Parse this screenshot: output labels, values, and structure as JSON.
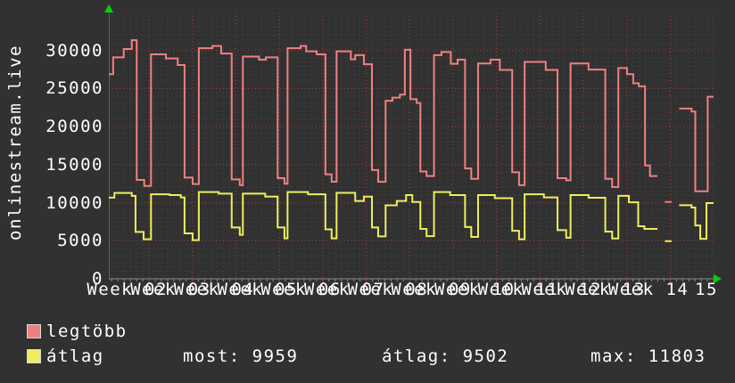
{
  "vertical_title": "onlinestream.live",
  "legend": {
    "items": [
      {
        "label": "legtöbb",
        "color": "#f08080"
      },
      {
        "label": "átlag",
        "color": "#edee5d"
      }
    ]
  },
  "stats_row": {
    "most": "most: 9959",
    "atlag": "átlag: 9502",
    "max": "max: 11803"
  },
  "chart_data": {
    "type": "line",
    "title": "onlinestream.live",
    "ylabel": "",
    "xlabel": "",
    "ylim": [
      0,
      35000
    ],
    "y_tick_values": [
      0,
      5000,
      10000,
      15000,
      20000,
      25000,
      30000
    ],
    "x_tick_labels": [
      "Week 02",
      "Week 03",
      "Week 04",
      "Week 05",
      "Week 06",
      "Week 07",
      "Week 08",
      "Week 09",
      "Week 10",
      "Week 11",
      "Week 12",
      "Week 13",
      "Week 14",
      "15"
    ],
    "x_unit": "days from chart start",
    "x_range_days": 97.45,
    "week_gridline_days": [
      6.47,
      13.47,
      20.47,
      27.47,
      34.47,
      41.47,
      48.47,
      55.47,
      62.47,
      69.47,
      76.47,
      83.47,
      90.47,
      97.45
    ],
    "grid": {
      "minor_y_step": 1000,
      "major_y_step": 5000,
      "minor_x_step_days": 1,
      "major_grid_color": "#a04040",
      "minor_grid_color": "#474747"
    },
    "legend_labels": [
      "legtöbb",
      "átlag"
    ],
    "stats": {
      "most": 9959,
      "atlag": 9502,
      "max": 11803
    },
    "series": [
      {
        "name": "legtöbb",
        "color": "#f08080",
        "runs": [
          [
            [
              0,
              0.7,
              26900
            ],
            [
              0.7,
              2.4,
              29100
            ],
            [
              2.4,
              3.7,
              30200
            ],
            [
              3.7,
              4.5,
              31350
            ],
            [
              4.5,
              5.7,
              13000
            ],
            [
              5.7,
              6.8,
              12200
            ],
            [
              6.8,
              9.2,
              29500
            ],
            [
              9.2,
              11.1,
              28950
            ],
            [
              11.1,
              12.2,
              28100
            ],
            [
              12.2,
              13.5,
              13300
            ],
            [
              13.5,
              14.5,
              12450
            ],
            [
              14.5,
              16.7,
              30300
            ],
            [
              16.7,
              18.1,
              30600
            ],
            [
              18.1,
              19.8,
              29600
            ],
            [
              19.8,
              21.1,
              13070
            ],
            [
              21.1,
              21.6,
              12300
            ],
            [
              21.6,
              24.2,
              29200
            ],
            [
              24.2,
              25.3,
              28800
            ],
            [
              25.3,
              27.2,
              29100
            ],
            [
              27.2,
              28.3,
              13230
            ],
            [
              28.3,
              28.8,
              12500
            ],
            [
              28.8,
              30.9,
              30300
            ],
            [
              30.9,
              31.8,
              30600
            ],
            [
              31.8,
              33.5,
              29900
            ],
            [
              33.5,
              34.9,
              29500
            ],
            [
              34.9,
              35.9,
              13720
            ],
            [
              35.9,
              36.7,
              12760
            ],
            [
              36.7,
              39.0,
              29900
            ],
            [
              39.0,
              39.7,
              28840
            ],
            [
              39.7,
              41.1,
              29400
            ],
            [
              41.1,
              42.4,
              28200
            ],
            [
              42.4,
              43.4,
              14300
            ],
            [
              43.4,
              44.6,
              12750
            ],
            [
              44.6,
              45.7,
              23400
            ],
            [
              45.7,
              46.9,
              23800
            ],
            [
              46.9,
              47.7,
              24200
            ],
            [
              47.7,
              48.6,
              30100
            ],
            [
              48.6,
              49.6,
              23600
            ],
            [
              49.6,
              50.2,
              23100
            ],
            [
              50.2,
              51.2,
              14100
            ],
            [
              51.2,
              52.4,
              13500
            ],
            [
              52.4,
              53.6,
              29400
            ],
            [
              53.6,
              55.1,
              29800
            ],
            [
              55.1,
              56.2,
              28260
            ],
            [
              56.2,
              57.4,
              28800
            ],
            [
              57.4,
              58.4,
              14500
            ],
            [
              58.4,
              59.5,
              13140
            ],
            [
              59.5,
              61.5,
              28300
            ],
            [
              61.5,
              63.0,
              28800
            ],
            [
              63.0,
              65.0,
              27450
            ],
            [
              65.0,
              66.1,
              14000
            ],
            [
              66.1,
              67.0,
              12300
            ],
            [
              67.0,
              70.4,
              28500
            ],
            [
              70.4,
              72.3,
              27450
            ],
            [
              72.3,
              73.7,
              13230
            ],
            [
              73.7,
              74.4,
              12950
            ],
            [
              74.4,
              77.3,
              28300
            ],
            [
              77.3,
              80.0,
              27500
            ],
            [
              80.0,
              81.1,
              13140
            ],
            [
              81.1,
              82.1,
              12060
            ],
            [
              82.1,
              83.5,
              27700
            ],
            [
              83.5,
              84.5,
              26900
            ],
            [
              84.5,
              85.4,
              25700
            ],
            [
              85.4,
              86.4,
              25300
            ],
            [
              86.4,
              87.2,
              14900
            ],
            [
              87.2,
              88.4,
              13500
            ]
          ],
          [
            [
              89.6,
              90.7,
              10100
            ]
          ],
          [
            [
              91.9,
              93.9,
              22370
            ],
            [
              93.9,
              94.5,
              21980
            ],
            [
              94.5,
              96.5,
              11500
            ],
            [
              96.5,
              97.45,
              23920
            ]
          ]
        ]
      },
      {
        "name": "átlag",
        "color": "#edee5d",
        "runs": [
          [
            [
              0,
              0.9,
              10660
            ],
            [
              0.9,
              3.7,
              11280
            ],
            [
              3.7,
              4.3,
              10900
            ],
            [
              4.3,
              5.6,
              6160
            ],
            [
              5.6,
              6.8,
              5200
            ],
            [
              6.8,
              9.8,
              11100
            ],
            [
              9.8,
              11.6,
              11000
            ],
            [
              11.6,
              12.2,
              10700
            ],
            [
              12.2,
              13.5,
              5970
            ],
            [
              13.5,
              14.5,
              5080
            ],
            [
              14.5,
              17.7,
              11400
            ],
            [
              17.7,
              19.8,
              11200
            ],
            [
              19.8,
              21.1,
              6750
            ],
            [
              21.1,
              21.6,
              5780
            ],
            [
              21.6,
              25.2,
              11200
            ],
            [
              25.2,
              27.2,
              10800
            ],
            [
              27.2,
              28.3,
              6750
            ],
            [
              28.3,
              28.8,
              5310
            ],
            [
              28.8,
              32.1,
              11400
            ],
            [
              32.1,
              34.9,
              11100
            ],
            [
              34.9,
              35.9,
              6500
            ],
            [
              35.9,
              36.7,
              5310
            ],
            [
              36.7,
              39.7,
              11300
            ],
            [
              39.7,
              41.1,
              10230
            ],
            [
              41.1,
              42.4,
              10800
            ],
            [
              42.4,
              43.4,
              6750
            ],
            [
              43.4,
              44.6,
              5580
            ],
            [
              44.6,
              46.4,
              9650
            ],
            [
              46.4,
              47.9,
              10230
            ],
            [
              47.9,
              48.9,
              11000
            ],
            [
              48.9,
              50.2,
              10100
            ],
            [
              50.2,
              51.2,
              6550
            ],
            [
              51.2,
              52.4,
              5600
            ],
            [
              52.4,
              55.0,
              11400
            ],
            [
              55.0,
              57.4,
              11000
            ],
            [
              57.4,
              58.4,
              6800
            ],
            [
              58.4,
              59.5,
              5500
            ],
            [
              59.5,
              62.2,
              11000
            ],
            [
              62.2,
              65.0,
              10600
            ],
            [
              65.0,
              66.1,
              6300
            ],
            [
              66.1,
              67.0,
              5200
            ],
            [
              67.0,
              70.1,
              11100
            ],
            [
              70.1,
              72.3,
              10700
            ],
            [
              72.3,
              73.7,
              6400
            ],
            [
              73.7,
              74.4,
              5400
            ],
            [
              74.4,
              77.3,
              11000
            ],
            [
              77.3,
              80.0,
              10650
            ],
            [
              80.0,
              81.1,
              6200
            ],
            [
              81.1,
              82.1,
              5300
            ],
            [
              82.1,
              83.8,
              10900
            ],
            [
              83.8,
              85.3,
              10050
            ],
            [
              85.3,
              86.3,
              6900
            ],
            [
              86.3,
              88.4,
              6550
            ]
          ],
          [
            [
              89.6,
              90.7,
              4950
            ]
          ],
          [
            [
              91.9,
              93.9,
              9670
            ],
            [
              93.9,
              94.5,
              9360
            ],
            [
              94.5,
              95.3,
              7010
            ],
            [
              95.3,
              96.3,
              5250
            ],
            [
              96.3,
              97.45,
              9950
            ]
          ]
        ]
      }
    ]
  }
}
